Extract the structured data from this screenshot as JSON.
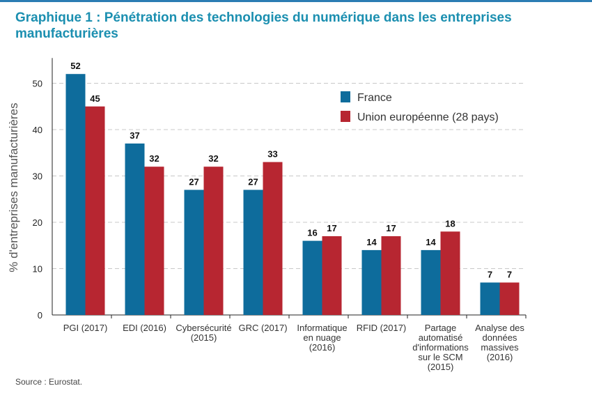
{
  "title": "Graphique 1 : Pénétration des technologies du numérique dans les entreprises manufacturières",
  "source": "Source : Eurostat.",
  "colors": {
    "france": "#0e6c9c",
    "eu": "#b72631",
    "grid": "#c8c8c8",
    "title": "#1b8fb0"
  },
  "chart_data": {
    "type": "bar",
    "title": "Graphique 1 : Pénétration des technologies du numérique dans les entreprises manufacturières",
    "xlabel": "",
    "ylabel": "% d'entreprises manufacturières",
    "ylim": [
      0,
      55
    ],
    "yticks": [
      0,
      10,
      20,
      30,
      40,
      50
    ],
    "grid": "horizontal dashed",
    "legend_position": "top-right",
    "categories": [
      [
        "PGI (2017)"
      ],
      [
        "EDI (2016)"
      ],
      [
        "Cybersécurité",
        "(2015)"
      ],
      [
        "GRC (2017)"
      ],
      [
        "Informatique",
        "en nuage",
        "(2016)"
      ],
      [
        "RFID (2017)"
      ],
      [
        "Partage",
        "automatisé",
        "d'informations",
        "sur le SCM",
        "(2015)"
      ],
      [
        "Analyse des",
        "données",
        "massives",
        "(2016)"
      ]
    ],
    "series": [
      {
        "name": "France",
        "color": "#0e6c9c",
        "values": [
          52,
          37,
          27,
          27,
          16,
          14,
          14,
          7
        ]
      },
      {
        "name": "Union européenne (28 pays)",
        "color": "#b72631",
        "values": [
          45,
          32,
          32,
          33,
          17,
          17,
          18,
          7
        ]
      }
    ]
  }
}
